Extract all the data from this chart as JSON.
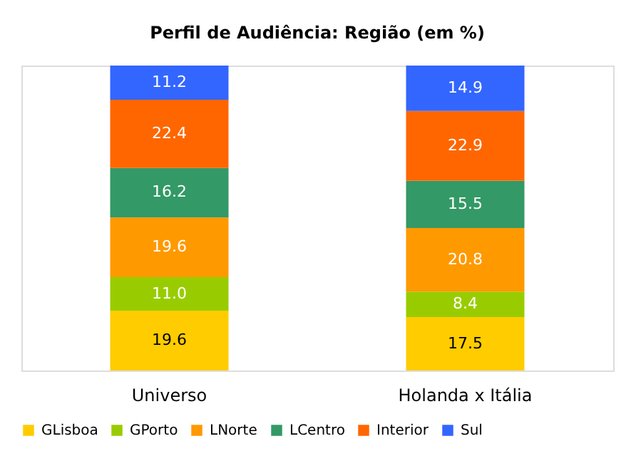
{
  "chart_data": {
    "type": "bar",
    "title": "Perfil de Audiência: Região (em %)",
    "stacked": true,
    "data_labels": true,
    "legend": "bottom",
    "grid": false,
    "categories": [
      "Universo",
      "Holanda x Itália"
    ],
    "series": [
      {
        "name": "GLisboa",
        "color": "#ffcc00",
        "values": [
          19.6,
          17.5
        ]
      },
      {
        "name": "GPorto",
        "color": "#99cc00",
        "values": [
          11.0,
          8.4
        ],
        "value_labels": [
          "11.0",
          "8.4"
        ]
      },
      {
        "name": "LNorte",
        "color": "#ff9900",
        "values": [
          19.6,
          20.8
        ]
      },
      {
        "name": "LCentro",
        "color": "#339966",
        "values": [
          16.2,
          15.5
        ]
      },
      {
        "name": "Interior",
        "color": "#ff6600",
        "values": [
          22.4,
          22.9
        ]
      },
      {
        "name": "Sul",
        "color": "#3366ff",
        "values": [
          11.2,
          14.9
        ]
      }
    ]
  }
}
